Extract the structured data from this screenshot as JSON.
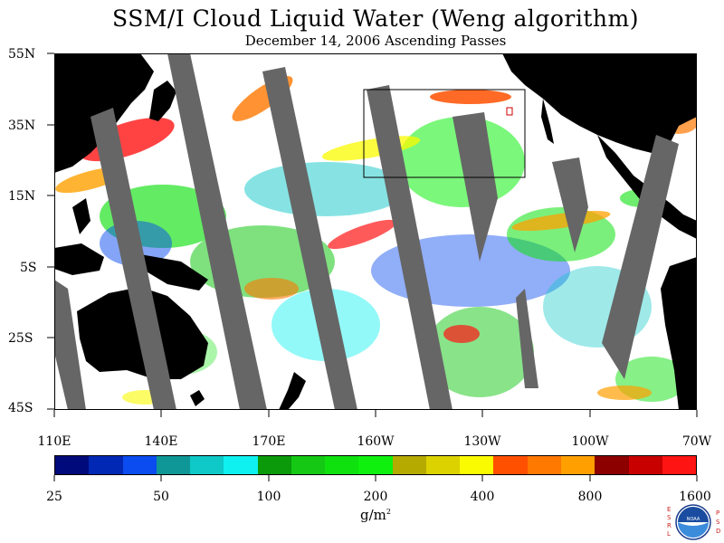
{
  "title": "SSM/I Cloud Liquid Water (Weng algorithm)",
  "subtitle": "December 14, 2006  Ascending Passes",
  "lat_labels": [
    "55N",
    "35N",
    "15N",
    "5S",
    "25S",
    "45S"
  ],
  "lon_labels": [
    "110E",
    "140E",
    "170E",
    "160W",
    "130W",
    "100W",
    "70W"
  ],
  "colorbar": {
    "colors": [
      "#000a7a",
      "#0028b4",
      "#0a4cf0",
      "#0f9696",
      "#0fc8c8",
      "#0ff0f0",
      "#0a9a0a",
      "#14c814",
      "#0fe10f",
      "#0ff00f",
      "#b4aa00",
      "#dcd200",
      "#fafa00",
      "#ff5000",
      "#ff7800",
      "#ffa000",
      "#8c0000",
      "#c80000",
      "#ff1414"
    ],
    "tick_labels": [
      "25",
      "50",
      "100",
      "200",
      "400",
      "800",
      "1600"
    ]
  },
  "units": "g/m",
  "units_sup": "2",
  "logo": {
    "esrl_letters": [
      "E",
      "S",
      "R",
      "L"
    ],
    "psd_letters": [
      "P",
      "S",
      "D"
    ],
    "name": "noaa-logo"
  }
}
